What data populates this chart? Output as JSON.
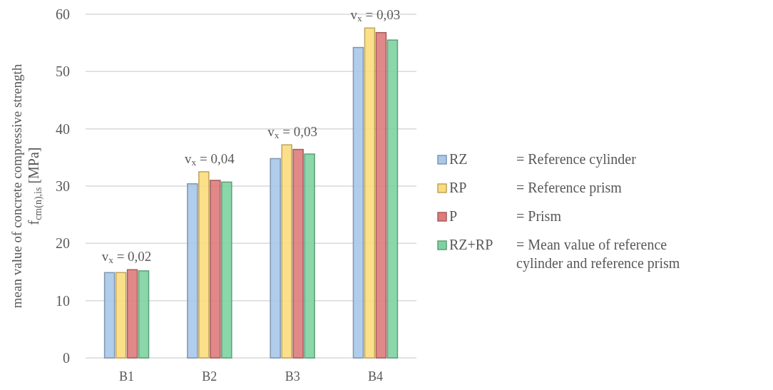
{
  "chart_data": {
    "type": "bar",
    "ylabel": "mean value of concrete compressive strength\nf$_{cm(n),is}$ [MPa]",
    "categories": [
      "B1",
      "B2",
      "B3",
      "B4"
    ],
    "series": [
      {
        "name": "RZ",
        "color": "#a9c8ea",
        "values": [
          14.9,
          30.4,
          34.8,
          54.2
        ]
      },
      {
        "name": "RP",
        "color": "#fbdc7c",
        "values": [
          14.9,
          32.5,
          37.2,
          57.6
        ]
      },
      {
        "name": "P",
        "color": "#de7b7b",
        "values": [
          15.4,
          31.0,
          36.4,
          56.8
        ]
      },
      {
        "name": "RZ+RP",
        "color": "#7dd3a0",
        "values": [
          15.2,
          30.7,
          35.6,
          55.5
        ]
      }
    ],
    "annotations": [
      "= Reference cylinder",
      "= Reference prism",
      "= Prism",
      "= Mean value of reference\ncylinder and reference prism",
      "v$_{x}$ = 0,02",
      "v$_{x}$ = 0,04",
      "v$_{x}$ = 0,03",
      "v$_{x}$ = 0,03"
    ],
    "ylim": [
      0,
      60
    ],
    "yticks": [
      0,
      10,
      20,
      30,
      40,
      50,
      60
    ],
    "grid": "y",
    "legend": "right"
  }
}
